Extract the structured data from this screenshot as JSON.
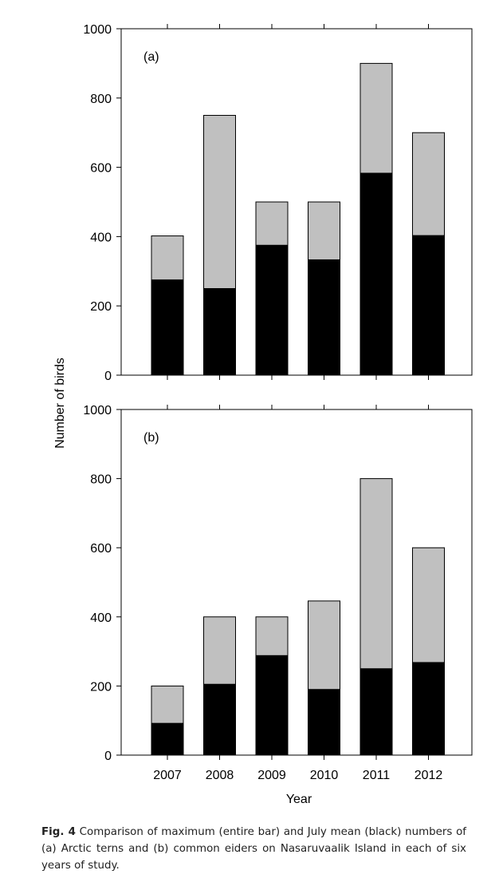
{
  "chart_data": [
    {
      "type": "bar",
      "stacked": true,
      "panel_label": "(a)",
      "categories": [
        "2007",
        "2008",
        "2009",
        "2010",
        "2011",
        "2012"
      ],
      "series": [
        {
          "values": [
            275,
            250,
            375,
            333,
            583,
            403
          ],
          "color": "#000000"
        },
        {
          "values": [
            127,
            500,
            125,
            167,
            317,
            297
          ],
          "color": "#c0c0c0"
        }
      ],
      "totals": [
        402,
        750,
        500,
        500,
        900,
        700
      ],
      "ylim": [
        0,
        1000
      ],
      "yticks": [
        "0",
        "200",
        "400",
        "600",
        "800",
        "1000"
      ],
      "grid": false
    },
    {
      "type": "bar",
      "stacked": true,
      "panel_label": "(b)",
      "categories": [
        "2007",
        "2008",
        "2009",
        "2010",
        "2011",
        "2012"
      ],
      "series": [
        {
          "values": [
            92,
            205,
            288,
            190,
            250,
            268
          ],
          "color": "#000000"
        },
        {
          "values": [
            108,
            195,
            112,
            256,
            550,
            332
          ],
          "color": "#c0c0c0"
        }
      ],
      "totals": [
        200,
        400,
        400,
        446,
        800,
        600
      ],
      "ylim": [
        0,
        1000
      ],
      "yticks": [
        "0",
        "200",
        "400",
        "600",
        "800",
        "1000"
      ],
      "grid": false
    }
  ],
  "axes": {
    "ylabel": "Number of birds",
    "xlabel": "Year"
  },
  "caption": {
    "label": "Fig. 4",
    "text": "Comparison of maximum (entire bar) and July mean (black) numbers of (a) Arctic terns and (b) common eiders on Nasaruvaalik Island in each of six years of study."
  }
}
